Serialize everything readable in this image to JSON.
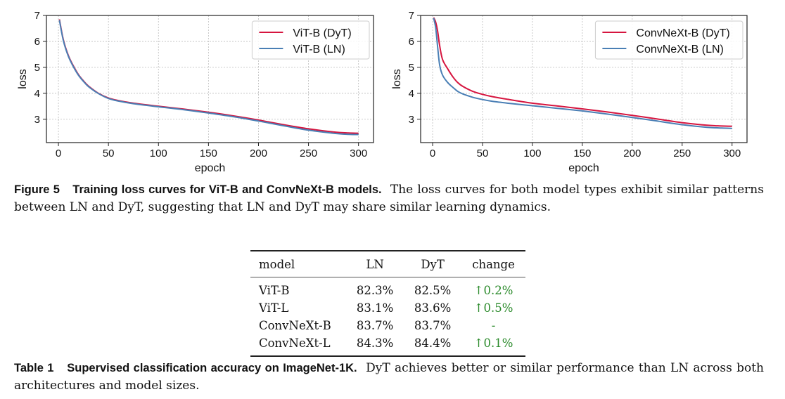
{
  "figure": {
    "caption_label": "Figure 5",
    "caption_title": "Training loss curves for ViT-B and ConvNeXt-B models.",
    "caption_body": "The loss curves for both model types exhibit similar patterns between LN and DyT, suggesting that LN and DyT may share similar learning dynamics."
  },
  "colors": {
    "dyt": "#d6153f",
    "ln": "#4a7fb5",
    "positive_change": "#2a8a2a"
  },
  "chart_data": [
    {
      "type": "line",
      "title": "",
      "xlabel": "epoch",
      "ylabel": "loss",
      "xlim": [
        -12,
        315
      ],
      "ylim": [
        2.1,
        7.0
      ],
      "xticks": [
        0,
        50,
        100,
        150,
        200,
        250,
        300
      ],
      "yticks": [
        3,
        4,
        5,
        6,
        7
      ],
      "grid": true,
      "legend_position": "top-right",
      "x": [
        1,
        5,
        10,
        15,
        20,
        25,
        30,
        40,
        50,
        60,
        75,
        100,
        125,
        150,
        175,
        200,
        225,
        250,
        275,
        290,
        300
      ],
      "series": [
        {
          "name": "ViT-B (DyT)",
          "color_key": "dyt",
          "values": [
            6.85,
            6.05,
            5.45,
            5.05,
            4.72,
            4.48,
            4.28,
            4.0,
            3.82,
            3.72,
            3.62,
            3.5,
            3.39,
            3.27,
            3.13,
            2.97,
            2.79,
            2.63,
            2.51,
            2.47,
            2.46
          ]
        },
        {
          "name": "ViT-B (LN)",
          "color_key": "ln",
          "values": [
            6.82,
            6.02,
            5.42,
            5.02,
            4.7,
            4.46,
            4.26,
            3.99,
            3.8,
            3.7,
            3.6,
            3.48,
            3.37,
            3.24,
            3.1,
            2.93,
            2.75,
            2.58,
            2.46,
            2.42,
            2.41
          ]
        }
      ]
    },
    {
      "type": "line",
      "title": "",
      "xlabel": "epoch",
      "ylabel": "loss",
      "xlim": [
        -12,
        315
      ],
      "ylim": [
        2.1,
        7.0
      ],
      "xticks": [
        0,
        50,
        100,
        150,
        200,
        250,
        300
      ],
      "yticks": [
        3,
        4,
        5,
        6,
        7
      ],
      "grid": true,
      "legend_position": "top-right",
      "x": [
        1,
        3,
        5,
        7,
        10,
        15,
        20,
        25,
        30,
        40,
        50,
        60,
        75,
        100,
        125,
        150,
        175,
        200,
        225,
        250,
        275,
        290,
        300
      ],
      "series": [
        {
          "name": "ConvNeXt-B (DyT)",
          "color_key": "dyt",
          "values": [
            6.92,
            6.75,
            6.4,
            5.85,
            5.3,
            4.95,
            4.65,
            4.42,
            4.27,
            4.08,
            3.96,
            3.87,
            3.77,
            3.62,
            3.51,
            3.4,
            3.28,
            3.15,
            3.01,
            2.87,
            2.77,
            2.74,
            2.73
          ]
        },
        {
          "name": "ConvNeXt-B (LN)",
          "color_key": "ln",
          "values": [
            6.9,
            6.55,
            5.8,
            5.1,
            4.7,
            4.42,
            4.24,
            4.08,
            3.98,
            3.85,
            3.76,
            3.69,
            3.62,
            3.52,
            3.42,
            3.32,
            3.2,
            3.07,
            2.93,
            2.79,
            2.69,
            2.66,
            2.65
          ]
        }
      ]
    }
  ],
  "table": {
    "caption_label": "Table 1",
    "caption_title": "Supervised classification accuracy on ImageNet-1K.",
    "caption_body": "DyT achieves better or similar performance than LN across both architectures and model sizes.",
    "headers": [
      "model",
      "LN",
      "DyT",
      "change"
    ],
    "rows": [
      {
        "model": "ViT-B",
        "ln": "82.3%",
        "dyt": "82.5%",
        "arrow": "↑",
        "change": "0.2%"
      },
      {
        "model": "ViT-L",
        "ln": "83.1%",
        "dyt": "83.6%",
        "arrow": "↑",
        "change": "0.5%"
      },
      {
        "model": "ConvNeXt-B",
        "ln": "83.7%",
        "dyt": "83.7%",
        "arrow": "",
        "change": "-"
      },
      {
        "model": "ConvNeXt-L",
        "ln": "84.3%",
        "dyt": "84.4%",
        "arrow": "↑",
        "change": "0.1%"
      }
    ]
  }
}
